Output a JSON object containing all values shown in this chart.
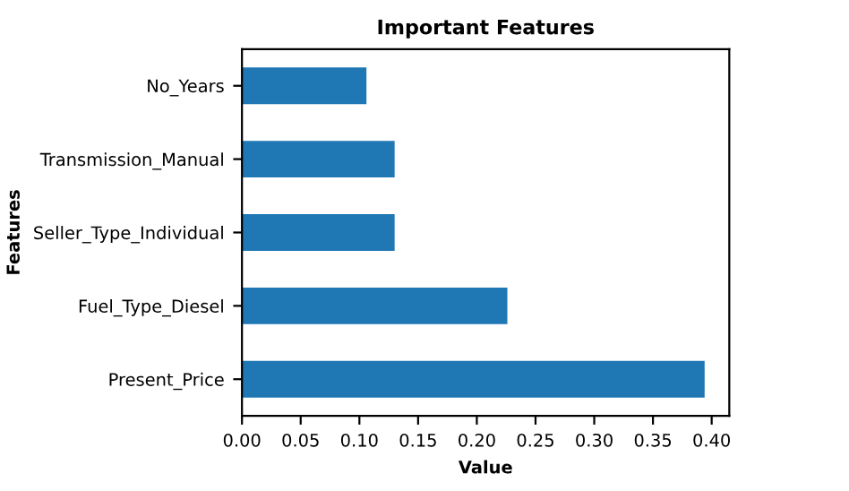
{
  "chart_data": {
    "type": "bar",
    "orientation": "horizontal",
    "title": "Important Features",
    "xlabel": "Value",
    "ylabel": "Features",
    "categories": [
      "No_Years",
      "Transmission_Manual",
      "Seller_Type_Individual",
      "Fuel_Type_Diesel",
      "Present_Price"
    ],
    "values": [
      0.106,
      0.13,
      0.13,
      0.226,
      0.394
    ],
    "color": "#1f77b4",
    "xlim": [
      0,
      0.415
    ],
    "xticks": [
      {
        "value": 0,
        "label": "0.00"
      },
      {
        "value": 0.05,
        "label": "0.05"
      },
      {
        "value": 0.1,
        "label": "0.10"
      },
      {
        "value": 0.15,
        "label": "0.15"
      },
      {
        "value": 0.2,
        "label": "0.20"
      },
      {
        "value": 0.25,
        "label": "0.25"
      },
      {
        "value": 0.3,
        "label": "0.30"
      },
      {
        "value": 0.35,
        "label": "0.35"
      },
      {
        "value": 0.4,
        "label": "0.40"
      }
    ],
    "grid": false,
    "legend": false
  }
}
